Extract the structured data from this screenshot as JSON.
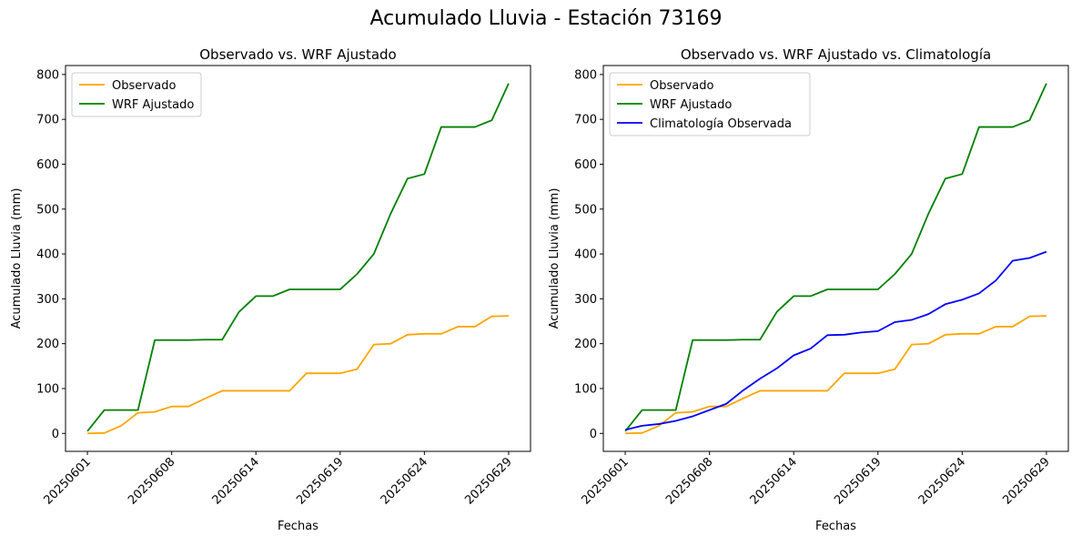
{
  "figure": {
    "suptitle": "Acumulado Lluvia - Estación 73169",
    "colors": {
      "observado": "#ffa500",
      "wrf": "#008000",
      "climatologia": "#0000ff"
    }
  },
  "chart_data": [
    {
      "type": "line",
      "title": "Observado vs. WRF Ajustado",
      "xlabel": "Fechas",
      "ylabel": "Acumulado Lluvia (mm)",
      "x_tick_labels": [
        "20250601",
        "20250608",
        "20250614",
        "20250619",
        "20250624",
        "20250629"
      ],
      "x_ticks_day_index": [
        0,
        5,
        10,
        15,
        20,
        25
      ],
      "y_ticks": [
        0,
        100,
        200,
        300,
        400,
        500,
        600,
        700,
        800
      ],
      "ylim": [
        -40,
        820
      ],
      "xlim": [
        -1.3,
        26.3
      ],
      "grid": false,
      "legend_position": "upper left",
      "series": [
        {
          "name": "Observado",
          "color": "#ffa500",
          "x": [
            0,
            1,
            2,
            3,
            4,
            5,
            6,
            7,
            8,
            9,
            10,
            11,
            12,
            13,
            14,
            15,
            16,
            17,
            18,
            19,
            20,
            21,
            22,
            23,
            24,
            25
          ],
          "values": [
            0,
            1,
            17,
            46,
            48,
            60,
            60,
            78,
            95,
            95,
            95,
            95,
            95,
            134,
            134,
            134,
            143,
            198,
            200,
            220,
            222,
            222,
            238,
            238,
            261,
            262
          ]
        },
        {
          "name": "WRF Ajustado",
          "color": "#008000",
          "x": [
            0,
            1,
            2,
            3,
            4,
            5,
            6,
            7,
            8,
            9,
            10,
            11,
            12,
            13,
            14,
            15,
            16,
            17,
            18,
            19,
            20,
            21,
            22,
            23,
            24,
            25
          ],
          "values": [
            5,
            52,
            52,
            52,
            208,
            208,
            208,
            209,
            209,
            271,
            306,
            306,
            321,
            321,
            321,
            321,
            355,
            400,
            490,
            568,
            578,
            683,
            683,
            683,
            698,
            780
          ]
        }
      ]
    },
    {
      "type": "line",
      "title": "Observado vs. WRF Ajustado vs. Climatología",
      "xlabel": "Fechas",
      "ylabel": "Acumulado Lluvia (mm)",
      "x_tick_labels": [
        "20250601",
        "20250608",
        "20250614",
        "20250619",
        "20250624",
        "20250629"
      ],
      "x_ticks_day_index": [
        0,
        5,
        10,
        15,
        20,
        25
      ],
      "y_ticks": [
        0,
        100,
        200,
        300,
        400,
        500,
        600,
        700,
        800
      ],
      "ylim": [
        -40,
        820
      ],
      "xlim": [
        -1.3,
        26.3
      ],
      "grid": false,
      "legend_position": "upper left",
      "series": [
        {
          "name": "Observado",
          "color": "#ffa500",
          "x": [
            0,
            1,
            2,
            3,
            4,
            5,
            6,
            7,
            8,
            9,
            10,
            11,
            12,
            13,
            14,
            15,
            16,
            17,
            18,
            19,
            20,
            21,
            22,
            23,
            24,
            25
          ],
          "values": [
            0,
            1,
            17,
            46,
            48,
            60,
            60,
            78,
            95,
            95,
            95,
            95,
            95,
            134,
            134,
            134,
            143,
            198,
            200,
            220,
            222,
            222,
            238,
            238,
            261,
            262
          ]
        },
        {
          "name": "WRF Ajustado",
          "color": "#008000",
          "x": [
            0,
            1,
            2,
            3,
            4,
            5,
            6,
            7,
            8,
            9,
            10,
            11,
            12,
            13,
            14,
            15,
            16,
            17,
            18,
            19,
            20,
            21,
            22,
            23,
            24,
            25
          ],
          "values": [
            5,
            52,
            52,
            52,
            208,
            208,
            208,
            209,
            209,
            271,
            306,
            306,
            321,
            321,
            321,
            321,
            355,
            400,
            490,
            568,
            578,
            683,
            683,
            683,
            698,
            780
          ]
        },
        {
          "name": "Climatología Observada",
          "color": "#0000ff",
          "x": [
            0,
            1,
            2,
            3,
            4,
            5,
            6,
            7,
            8,
            9,
            10,
            11,
            12,
            13,
            14,
            15,
            16,
            17,
            18,
            19,
            20,
            21,
            22,
            23,
            24,
            25
          ],
          "values": [
            8,
            17,
            21,
            28,
            38,
            52,
            66,
            96,
            122,
            145,
            174,
            189,
            219,
            220,
            225,
            228,
            248,
            253,
            266,
            288,
            298,
            312,
            341,
            385,
            391,
            405
          ]
        }
      ]
    }
  ]
}
